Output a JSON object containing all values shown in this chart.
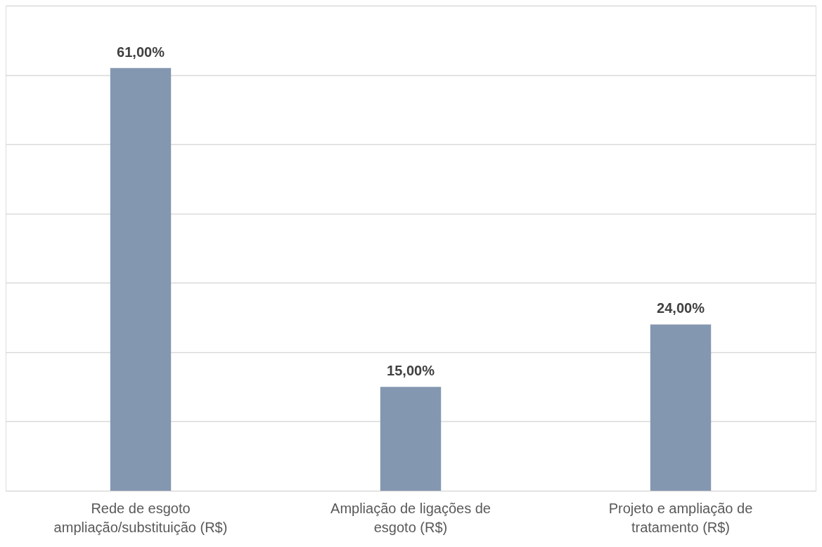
{
  "chart_data": {
    "type": "bar",
    "categories": [
      "Rede de esgoto ampliação/substituição (R$)",
      "Ampliação de ligações de esgoto (R$)",
      "Projeto e ampliação de tratamento (R$)"
    ],
    "values": [
      61,
      15,
      24
    ],
    "value_labels": [
      "61,00%",
      "15,00%",
      "24,00%"
    ],
    "color": "#8497b0",
    "ylim": [
      0,
      70
    ],
    "yticks": [
      {
        "value": 0,
        "label": null
      },
      {
        "value": 10,
        "label": null
      },
      {
        "value": 20,
        "label": null
      },
      {
        "value": 30,
        "label": null
      },
      {
        "value": 40,
        "label": null
      },
      {
        "value": 50,
        "label": null
      },
      {
        "value": 60,
        "label": null
      },
      {
        "value": 70,
        "label": null
      }
    ],
    "grid": "y",
    "tick_labels": "x"
  }
}
